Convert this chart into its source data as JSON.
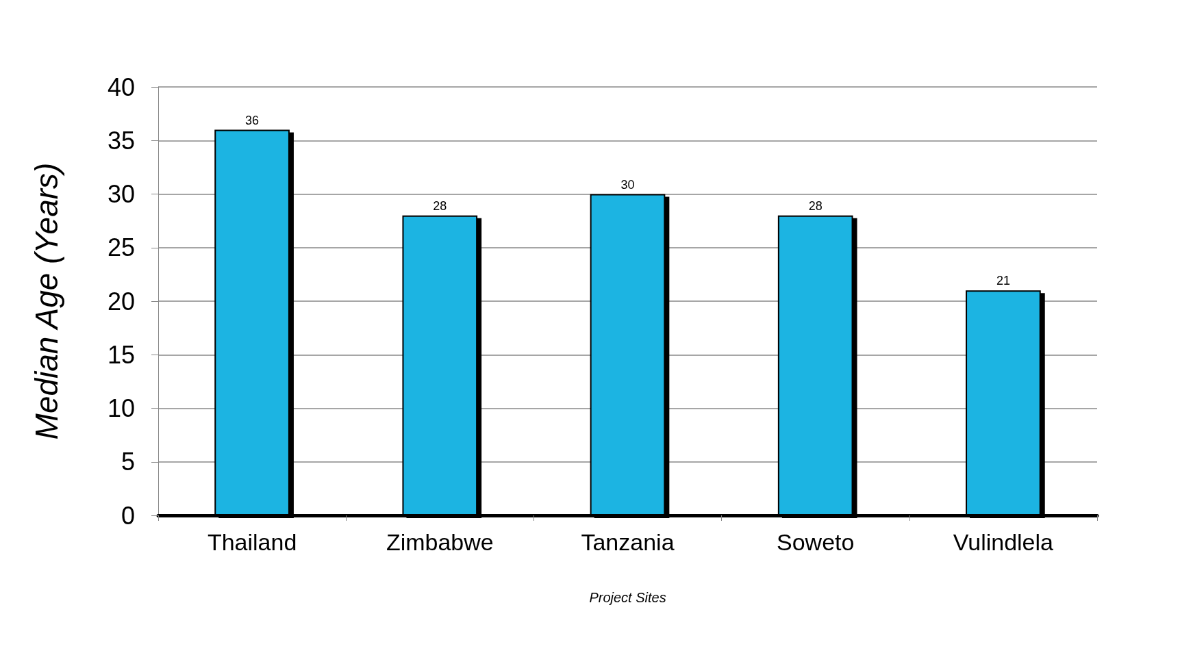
{
  "chart_data": {
    "type": "bar",
    "xlabel": "Project Sites",
    "ylabel": "Median Age (Years)",
    "categories": [
      "Thailand",
      "Zimbabwe",
      "Tanzania",
      "Soweto",
      "Vulindlela"
    ],
    "values": [
      36,
      28,
      30,
      28,
      21
    ],
    "color": "#1cb4e2",
    "ylim": [
      0,
      40
    ],
    "yticks": [
      0,
      5,
      10,
      15,
      20,
      25,
      30,
      35,
      40
    ],
    "grid": "y",
    "data_labels": true
  }
}
